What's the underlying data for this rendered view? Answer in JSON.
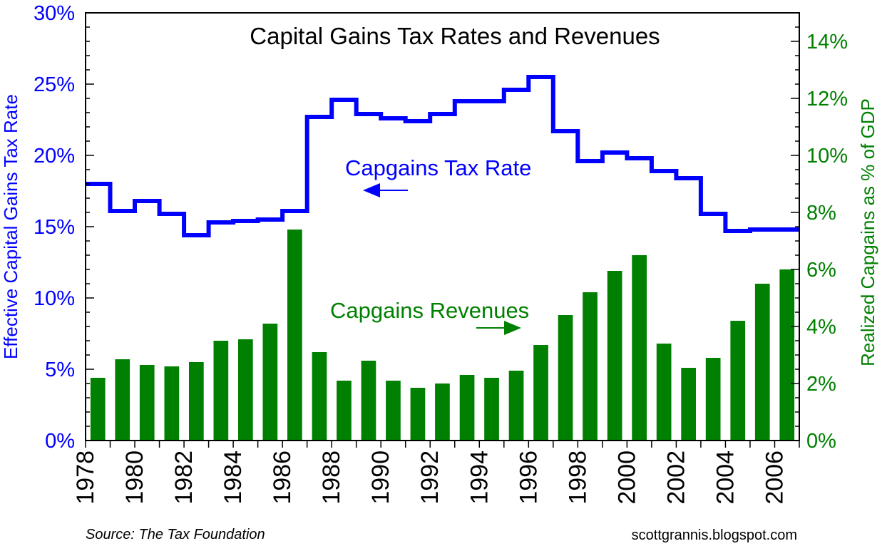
{
  "chart_data": {
    "type": "bar+step-line",
    "title": "Capital Gains Tax Rates and Revenues",
    "x": [
      1978,
      1979,
      1980,
      1981,
      1982,
      1983,
      1984,
      1985,
      1986,
      1987,
      1988,
      1989,
      1990,
      1991,
      1992,
      1993,
      1994,
      1995,
      1996,
      1997,
      1998,
      1999,
      2000,
      2001,
      2002,
      2003,
      2004,
      2005,
      2006
    ],
    "x_tick_labels": [
      "1978",
      "1980",
      "1982",
      "1984",
      "1986",
      "1988",
      "1990",
      "1992",
      "1994",
      "1996",
      "1998",
      "2000",
      "2002",
      "2004",
      "2006"
    ],
    "left_axis": {
      "label": "Effective Capital Gains Tax Rate",
      "range": [
        0,
        30
      ],
      "tick_labels": [
        "0%",
        "5%",
        "10%",
        "15%",
        "20%",
        "25%",
        "30%"
      ],
      "color": "#0000ff"
    },
    "right_axis": {
      "label": "Realized Capgains as % of GDP",
      "range": [
        0,
        15
      ],
      "tick_labels": [
        "0%",
        "2%",
        "4%",
        "6%",
        "8%",
        "10%",
        "12%",
        "14%"
      ],
      "color": "#008000"
    },
    "series": [
      {
        "name": "Capgains Tax Rate",
        "axis": "left",
        "type": "step-line",
        "color": "#0000ff",
        "values": [
          18.0,
          16.1,
          16.8,
          15.9,
          14.4,
          15.3,
          15.4,
          15.5,
          16.1,
          22.7,
          23.9,
          22.9,
          22.6,
          22.4,
          22.9,
          23.8,
          23.8,
          24.6,
          25.5,
          21.7,
          19.6,
          20.2,
          19.8,
          18.9,
          18.4,
          15.9,
          14.7,
          14.8,
          14.8
        ]
      },
      {
        "name": "Capgains Revenues",
        "axis": "right",
        "type": "bar",
        "color": "#008000",
        "values": [
          2.2,
          2.85,
          2.65,
          2.6,
          2.75,
          3.5,
          3.55,
          4.1,
          7.4,
          3.1,
          2.1,
          2.8,
          2.1,
          1.85,
          2.0,
          2.3,
          2.2,
          2.45,
          3.35,
          4.4,
          5.2,
          5.95,
          6.5,
          3.4,
          2.55,
          2.9,
          4.2,
          5.5,
          6.0
        ]
      }
    ],
    "annotations": [
      {
        "text": "Capgains Tax Rate",
        "color": "#0000ff",
        "arrow": "left"
      },
      {
        "text": "Capgains Revenues",
        "color": "#008000",
        "arrow": "right"
      }
    ],
    "source": "Source: The Tax Foundation",
    "credit": "scottgrannis.blogspot.com"
  }
}
